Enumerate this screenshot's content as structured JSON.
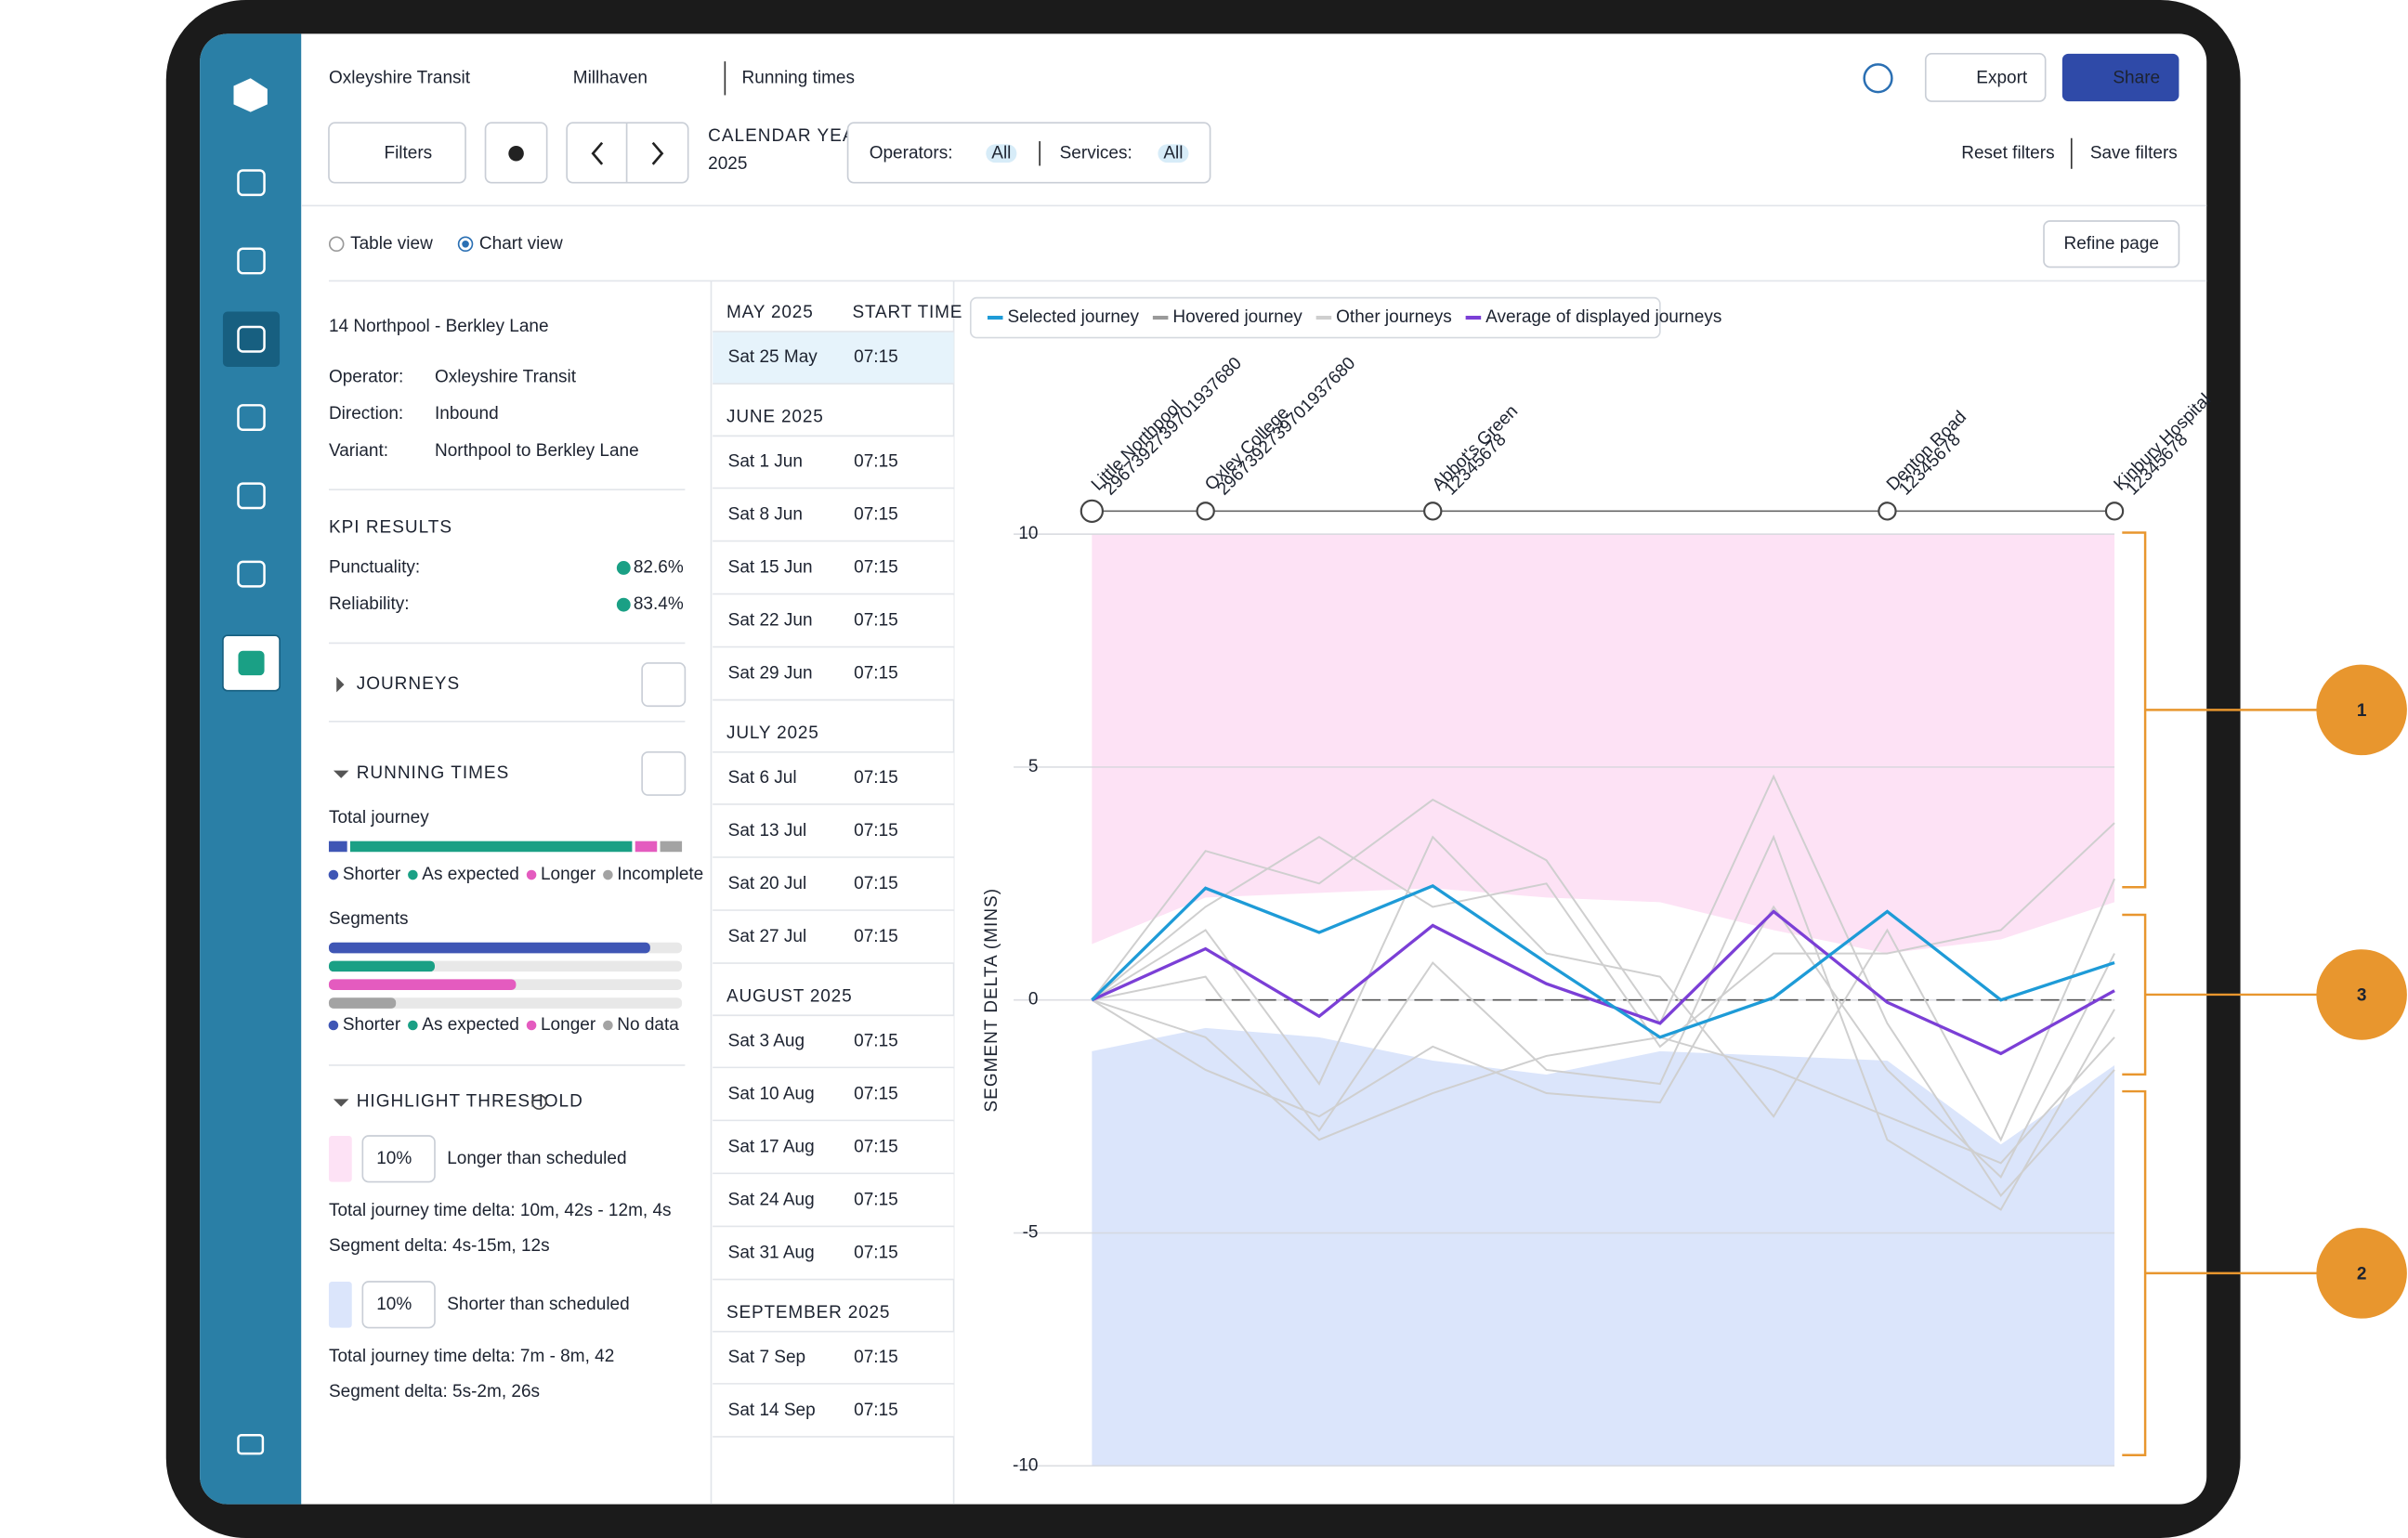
{
  "header": {
    "org": "Oxleyshire Transit",
    "area": "Millhaven",
    "page": "Running times",
    "export": "Export",
    "share": "Share"
  },
  "filters": {
    "button": "Filters",
    "year_label": "CALENDAR YEAR",
    "year": "2025",
    "operators": "Operators:",
    "operators_value": "All",
    "services": "Services:",
    "services_value": "All",
    "reset": "Reset filters",
    "save": "Save filters"
  },
  "views": {
    "table": "Table view",
    "chart": "Chart view",
    "refine": "Refine page"
  },
  "route": {
    "title": "14 Northpool - Berkley Lane",
    "details": [
      {
        "label": "Operator:",
        "value": "Oxleyshire Transit"
      },
      {
        "label": "Direction:",
        "value": "Inbound"
      },
      {
        "label": "Variant:",
        "value": "Northpool to Berkley Lane"
      }
    ]
  },
  "kpi": {
    "title": "KPI RESULTS",
    "items": [
      {
        "label": "Punctuality:",
        "value": "82.6%"
      },
      {
        "label": "Reliability:",
        "value": "83.4%"
      }
    ]
  },
  "journeys": {
    "title": "JOURNEYS"
  },
  "running_times": {
    "title": "RUNNING TIMES",
    "total": {
      "label": "Total journey",
      "legend": [
        "Shorter",
        "As expected",
        "Longer",
        "Incomplete"
      ],
      "values": [
        6,
        80,
        7,
        7
      ]
    },
    "segments": {
      "label": "Segments",
      "legend": [
        "Shorter",
        "As expected",
        "Longer",
        "No data"
      ],
      "values": [
        91,
        30,
        53,
        19
      ]
    },
    "colors": [
      "#3f56b5",
      "#1aa085",
      "#e45bbf",
      "#a3a3a3"
    ]
  },
  "threshold": {
    "title": "HIGHLIGHT THRESHOLD",
    "longer": {
      "value": "10%",
      "label": "Longer than scheduled",
      "total": "Total journey time delta:  10m, 42s - 12m, 4s",
      "segment": "Segment delta:  4s-15m, 12s",
      "color": "#fde2f5"
    },
    "shorter": {
      "value": "10%",
      "label": "Shorter than scheduled",
      "total": "Total journey time delta:  7m - 8m, 42",
      "segment": "Segment delta:  5s-2m, 26s",
      "color": "#dbe5fb"
    }
  },
  "trips": {
    "header": "START TIME",
    "groups": [
      {
        "month": "MAY 2025",
        "trips": [
          {
            "date": "Sat 25 May",
            "time": "07:15",
            "selected": true
          }
        ]
      },
      {
        "month": "JUNE 2025",
        "trips": [
          {
            "date": "Sat 1 Jun",
            "time": "07:15"
          },
          {
            "date": "Sat 8 Jun",
            "time": "07:15"
          },
          {
            "date": "Sat 15 Jun",
            "time": "07:15"
          },
          {
            "date": "Sat 22 Jun",
            "time": "07:15"
          },
          {
            "date": "Sat 29 Jun",
            "time": "07:15"
          }
        ]
      },
      {
        "month": "JULY 2025",
        "trips": [
          {
            "date": "Sat 6 Jul",
            "time": "07:15"
          },
          {
            "date": "Sat 13 Jul",
            "time": "07:15"
          },
          {
            "date": "Sat 20 Jul",
            "time": "07:15"
          },
          {
            "date": "Sat 27 Jul",
            "time": "07:15"
          }
        ]
      },
      {
        "month": "AUGUST 2025",
        "trips": [
          {
            "date": "Sat 3 Aug",
            "time": "07:15"
          },
          {
            "date": "Sat 10 Aug",
            "time": "07:15"
          },
          {
            "date": "Sat 17 Aug",
            "time": "07:15"
          },
          {
            "date": "Sat 24 Aug",
            "time": "07:15"
          },
          {
            "date": "Sat 31 Aug",
            "time": "07:15"
          }
        ]
      },
      {
        "month": "SEPTEMBER 2025",
        "trips": [
          {
            "date": "Sat 7 Sep",
            "time": "07:15"
          },
          {
            "date": "Sat 14 Sep",
            "time": "07:15"
          }
        ]
      }
    ]
  },
  "chart_data": {
    "type": "line",
    "ylabel": "SEGMENT DELTA (MINS)",
    "legend": [
      {
        "name": "Selected journey",
        "color": "#1e9bd7"
      },
      {
        "name": "Hovered journey",
        "color": "#9a9a9a"
      },
      {
        "name": "Other journeys",
        "color": "#cfcfcf"
      },
      {
        "name": "Average of displayed journeys",
        "color": "#7b3fd6"
      }
    ],
    "categories": [
      "Little Northpool",
      "Oxley College",
      null,
      "Abbot's Green",
      null,
      null,
      null,
      "Denton Road",
      null,
      "Kinbury Hospital"
    ],
    "stop_codes": [
      "2967392739701937680",
      "2967392739701937680",
      null,
      "12345678",
      null,
      null,
      null,
      "12345678",
      null,
      "12345678"
    ],
    "ylim": [
      -10,
      10
    ],
    "yticks": [
      -10,
      -5,
      0,
      5,
      10
    ],
    "longer_band_floor": [
      1.2,
      2.2,
      2.3,
      2.4,
      2.2,
      2.1,
      1.5,
      1,
      1.3,
      2.1
    ],
    "shorter_band_ceiling": [
      -1.1,
      -0.6,
      -0.8,
      -1.3,
      -1.6,
      -1.1,
      -1.2,
      -1.3,
      -3.1,
      -1.4
    ],
    "series": [
      {
        "name": "Other journeys",
        "color": "#cfcfcf",
        "values": [
          0,
          3.2,
          2.5,
          4.3,
          3,
          -0.5,
          4.8,
          -0.5,
          -4.2,
          -1.5
        ]
      },
      {
        "name": "Other journeys",
        "color": "#cfcfcf",
        "values": [
          0,
          -1.5,
          -2.5,
          -1,
          -2,
          -2.2,
          2,
          -1.5,
          -3.8,
          1
        ]
      },
      {
        "name": "Other journeys",
        "color": "#cfcfcf",
        "values": [
          0,
          1.5,
          -1.8,
          3.5,
          1,
          0.5,
          -2.5,
          1.5,
          -3,
          2.6
        ]
      },
      {
        "name": "Other journeys",
        "color": "#cfcfcf",
        "values": [
          0,
          0.5,
          -2.8,
          0.8,
          -1.5,
          -1.8,
          3.5,
          -3,
          -4.5,
          -0.2
        ]
      },
      {
        "name": "Other journeys",
        "color": "#cfcfcf",
        "values": [
          0,
          2,
          3.5,
          2,
          2.5,
          -1,
          1,
          1,
          1.5,
          3.8
        ]
      },
      {
        "name": "Other journeys",
        "color": "#cfcfcf",
        "values": [
          0,
          -0.8,
          -3,
          -2,
          -1.2,
          -0.8,
          -1.5,
          -2.5,
          -3.5,
          -0.8
        ]
      },
      {
        "name": "Average of displayed journeys",
        "color": "#7b3fd6",
        "values": [
          0,
          1.1,
          -0.35,
          1.6,
          0.35,
          -0.5,
          1.9,
          -0.05,
          -1.15,
          0.2
        ]
      },
      {
        "name": "Selected journey",
        "color": "#1e9bd7",
        "values": [
          0,
          2.4,
          1.45,
          2.45,
          0.8,
          -0.8,
          0.05,
          1.9,
          0,
          0.8
        ]
      }
    ],
    "annotations": [
      "1",
      "3",
      "2"
    ]
  }
}
